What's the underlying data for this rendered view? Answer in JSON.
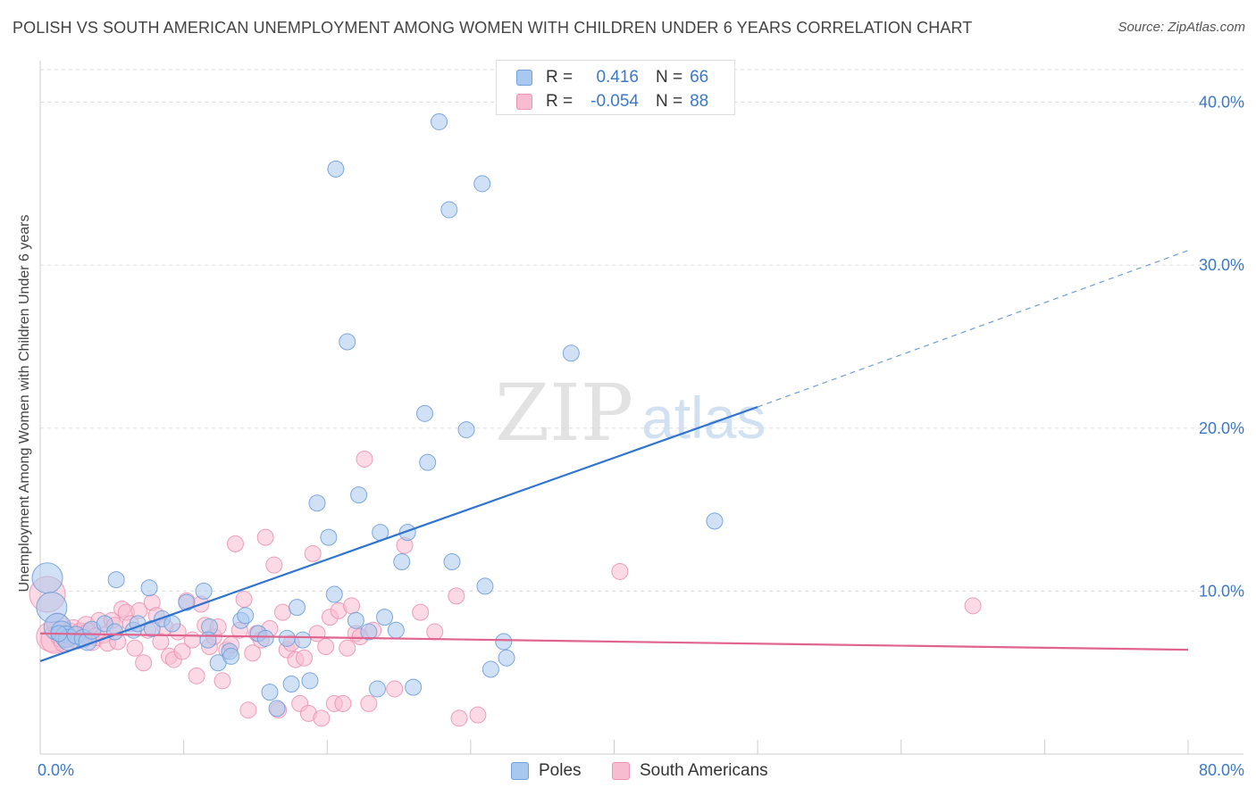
{
  "title": "POLISH VS SOUTH AMERICAN UNEMPLOYMENT AMONG WOMEN WITH CHILDREN UNDER 6 YEARS CORRELATION CHART",
  "source": "Source: ZipAtlas.com",
  "watermark": {
    "zip": "ZIP",
    "atlas": "atlas"
  },
  "legend": {
    "rows": [
      {
        "r_label": "R =",
        "r_value": "0.416",
        "n_label": "N =",
        "n_value": "66"
      },
      {
        "r_label": "R =",
        "r_value": "-0.054",
        "n_label": "N =",
        "n_value": "88"
      }
    ]
  },
  "bottom_legend": {
    "poles": "Poles",
    "south_americans": "South Americans"
  },
  "colors": {
    "poles_fill": "#a9c8ef",
    "poles_stroke": "#6f9fdc",
    "poles_line": "#2f74d0",
    "sa_fill": "#f7bcd0",
    "sa_stroke": "#ec93b2",
    "sa_line": "#e0648e",
    "tick_label": "#3b78c9",
    "grid": "#dddddd"
  },
  "chart_data": {
    "type": "scatter",
    "title": "POLISH VS SOUTH AMERICAN UNEMPLOYMENT AMONG WOMEN WITH CHILDREN UNDER 6 YEARS CORRELATION CHART",
    "xlabel": "",
    "ylabel": "Unemployment Among Women with Children Under 6 years",
    "xlim": [
      0,
      80
    ],
    "ylim": [
      0,
      42
    ],
    "x_tick_labels": [
      "0.0%",
      "80.0%"
    ],
    "y_ticks": [
      10,
      20,
      30,
      40
    ],
    "y_tick_labels": [
      "10.0%",
      "20.0%",
      "30.0%",
      "40.0%"
    ],
    "grid": true,
    "series": [
      {
        "name": "Poles",
        "r": 0.416,
        "n": 66,
        "trend": {
          "x0": 0,
          "y0": 5.7,
          "x1": 50,
          "y1": 21.3,
          "dashed_to_x": 80,
          "dashed_to_y": 30.9
        },
        "points": [
          [
            0.5,
            10.8
          ],
          [
            0.8,
            9.0
          ],
          [
            1.2,
            7.8
          ],
          [
            1.5,
            7.5
          ],
          [
            1.8,
            7.2
          ],
          [
            2.0,
            7.0
          ],
          [
            2.5,
            7.3
          ],
          [
            3.0,
            7.1
          ],
          [
            3.3,
            6.9
          ],
          [
            3.6,
            7.6
          ],
          [
            4.5,
            8.0
          ],
          [
            5.2,
            7.5
          ],
          [
            5.3,
            10.7
          ],
          [
            6.5,
            7.6
          ],
          [
            6.8,
            8.0
          ],
          [
            7.6,
            10.2
          ],
          [
            7.8,
            7.7
          ],
          [
            8.5,
            8.3
          ],
          [
            9.2,
            8.0
          ],
          [
            10.2,
            9.3
          ],
          [
            11.4,
            10.0
          ],
          [
            11.8,
            7.8
          ],
          [
            11.7,
            7.0
          ],
          [
            12.4,
            5.6
          ],
          [
            13.2,
            6.3
          ],
          [
            13.3,
            6.0
          ],
          [
            14.0,
            8.2
          ],
          [
            14.3,
            8.5
          ],
          [
            15.2,
            7.4
          ],
          [
            15.7,
            7.1
          ],
          [
            16.0,
            3.8
          ],
          [
            16.5,
            2.8
          ],
          [
            17.2,
            7.1
          ],
          [
            17.5,
            4.3
          ],
          [
            17.9,
            9.0
          ],
          [
            18.3,
            7.0
          ],
          [
            18.8,
            4.5
          ],
          [
            19.3,
            15.4
          ],
          [
            20.1,
            13.3
          ],
          [
            20.5,
            9.8
          ],
          [
            20.6,
            35.9
          ],
          [
            21.4,
            25.3
          ],
          [
            22.0,
            8.2
          ],
          [
            22.2,
            15.9
          ],
          [
            22.9,
            7.5
          ],
          [
            23.5,
            4.0
          ],
          [
            23.7,
            13.6
          ],
          [
            24.0,
            8.4
          ],
          [
            24.8,
            7.6
          ],
          [
            25.2,
            11.8
          ],
          [
            25.6,
            13.6
          ],
          [
            26.0,
            4.1
          ],
          [
            26.8,
            20.9
          ],
          [
            27.0,
            17.9
          ],
          [
            27.8,
            38.8
          ],
          [
            28.5,
            33.4
          ],
          [
            28.7,
            11.8
          ],
          [
            29.7,
            19.9
          ],
          [
            30.8,
            35.0
          ],
          [
            31.0,
            10.3
          ],
          [
            31.4,
            5.2
          ],
          [
            32.3,
            6.9
          ],
          [
            32.5,
            5.9
          ],
          [
            37.0,
            24.6
          ],
          [
            47.0,
            14.3
          ],
          [
            1.3,
            7.4
          ]
        ],
        "sizes": [
          17,
          17,
          15,
          12,
          12,
          12,
          10,
          10,
          10,
          10,
          9,
          9,
          9,
          9,
          9,
          9,
          9,
          9,
          9,
          9,
          9,
          9,
          9,
          9,
          9,
          9,
          9,
          9,
          9,
          9,
          9,
          9,
          9,
          9,
          9,
          9,
          9,
          9,
          9,
          9,
          9,
          9,
          9,
          9,
          9,
          9,
          9,
          9,
          9,
          9,
          9,
          9,
          9,
          9,
          9,
          9,
          9,
          9,
          9,
          9,
          9,
          9,
          9,
          9,
          9,
          9
        ]
      },
      {
        "name": "South Americans",
        "r": -0.054,
        "n": 88,
        "trend": {
          "x0": 0,
          "y0": 7.4,
          "x1": 80,
          "y1": 6.4
        },
        "points": [
          [
            0.5,
            9.8
          ],
          [
            0.8,
            7.2
          ],
          [
            1.0,
            7.0
          ],
          [
            1.2,
            8.0
          ],
          [
            1.5,
            7.2
          ],
          [
            1.7,
            6.9
          ],
          [
            2.0,
            7.4
          ],
          [
            2.3,
            7.7
          ],
          [
            2.6,
            7.0
          ],
          [
            2.8,
            7.5
          ],
          [
            3.2,
            7.9
          ],
          [
            3.4,
            7.5
          ],
          [
            3.6,
            6.9
          ],
          [
            3.9,
            7.2
          ],
          [
            4.1,
            8.2
          ],
          [
            4.4,
            7.3
          ],
          [
            4.7,
            6.8
          ],
          [
            5.0,
            8.2
          ],
          [
            5.2,
            7.9
          ],
          [
            5.4,
            6.9
          ],
          [
            5.7,
            8.9
          ],
          [
            6.0,
            8.7
          ],
          [
            6.3,
            8.0
          ],
          [
            6.6,
            6.5
          ],
          [
            6.9,
            8.8
          ],
          [
            7.2,
            5.6
          ],
          [
            7.5,
            7.6
          ],
          [
            7.8,
            9.3
          ],
          [
            8.1,
            8.5
          ],
          [
            8.4,
            6.9
          ],
          [
            8.7,
            7.8
          ],
          [
            9.0,
            6.0
          ],
          [
            9.3,
            5.8
          ],
          [
            9.6,
            7.5
          ],
          [
            9.9,
            6.3
          ],
          [
            10.2,
            9.4
          ],
          [
            10.6,
            7.0
          ],
          [
            10.9,
            4.8
          ],
          [
            11.2,
            9.2
          ],
          [
            11.5,
            7.9
          ],
          [
            11.8,
            6.6
          ],
          [
            12.1,
            7.2
          ],
          [
            12.4,
            7.8
          ],
          [
            12.7,
            4.5
          ],
          [
            13.0,
            6.4
          ],
          [
            13.3,
            6.7
          ],
          [
            13.6,
            12.9
          ],
          [
            13.9,
            7.6
          ],
          [
            14.2,
            9.5
          ],
          [
            14.5,
            2.7
          ],
          [
            14.8,
            6.2
          ],
          [
            15.1,
            7.4
          ],
          [
            15.4,
            7.0
          ],
          [
            15.7,
            13.3
          ],
          [
            16.0,
            7.7
          ],
          [
            16.3,
            11.6
          ],
          [
            16.6,
            2.7
          ],
          [
            16.9,
            8.7
          ],
          [
            17.2,
            6.4
          ],
          [
            17.5,
            6.8
          ],
          [
            17.8,
            5.8
          ],
          [
            18.1,
            3.1
          ],
          [
            18.4,
            5.9
          ],
          [
            18.7,
            2.5
          ],
          [
            19.0,
            12.3
          ],
          [
            19.3,
            7.4
          ],
          [
            19.6,
            2.2
          ],
          [
            19.9,
            6.6
          ],
          [
            20.2,
            8.4
          ],
          [
            20.5,
            3.1
          ],
          [
            20.8,
            8.8
          ],
          [
            21.1,
            3.1
          ],
          [
            21.4,
            6.5
          ],
          [
            21.7,
            9.1
          ],
          [
            22.0,
            7.4
          ],
          [
            22.3,
            7.2
          ],
          [
            22.6,
            18.1
          ],
          [
            22.9,
            3.1
          ],
          [
            23.2,
            7.6
          ],
          [
            24.7,
            4.0
          ],
          [
            25.4,
            12.8
          ],
          [
            26.5,
            8.7
          ],
          [
            27.5,
            7.5
          ],
          [
            29.0,
            9.7
          ],
          [
            30.5,
            2.4
          ],
          [
            40.4,
            11.2
          ],
          [
            65.0,
            9.1
          ],
          [
            29.2,
            2.2
          ]
        ],
        "sizes": [
          20,
          17,
          15,
          12,
          12,
          12,
          12,
          10,
          10,
          10,
          10,
          10,
          10,
          10,
          9,
          9,
          9,
          9,
          9,
          9,
          9,
          9,
          9,
          9,
          9,
          9,
          9,
          9,
          9,
          9,
          9,
          9,
          9,
          9,
          9,
          9,
          9,
          9,
          9,
          9,
          9,
          9,
          9,
          9,
          9,
          9,
          9,
          9,
          9,
          9,
          9,
          9,
          9,
          9,
          9,
          9,
          9,
          9,
          9,
          9,
          9,
          9,
          9,
          9,
          9,
          9,
          9,
          9,
          9,
          9,
          9,
          9,
          9,
          9,
          9,
          9,
          9,
          9,
          9,
          9,
          9,
          9,
          9,
          9,
          9,
          9,
          9,
          9
        ]
      }
    ]
  }
}
